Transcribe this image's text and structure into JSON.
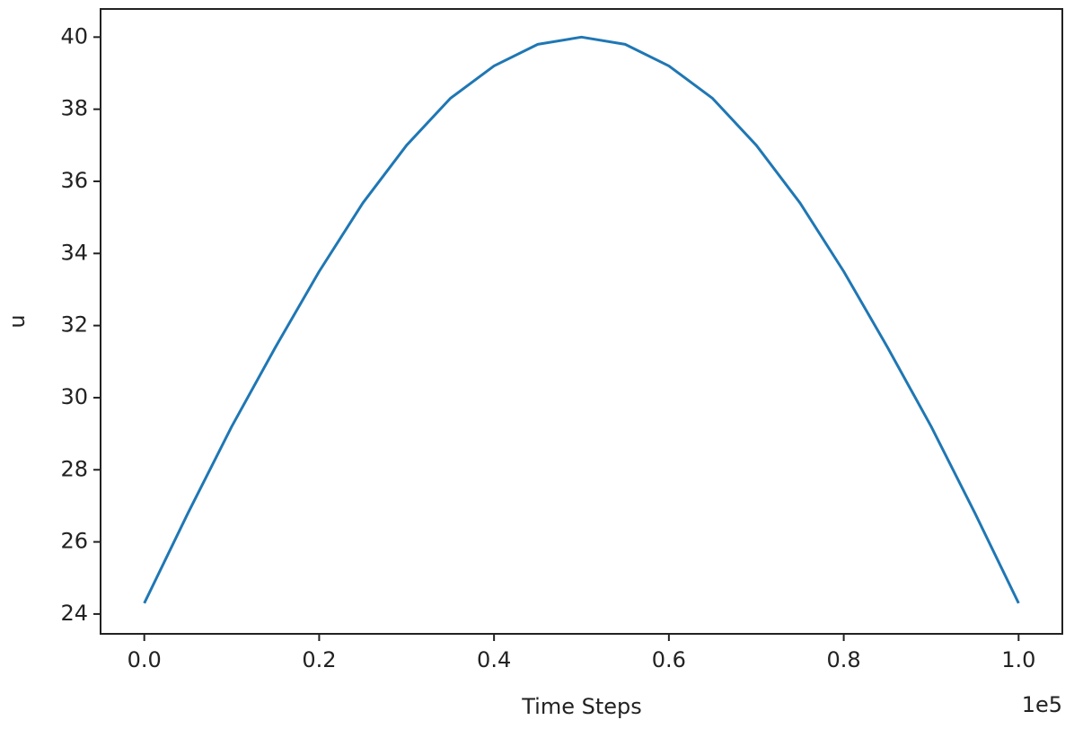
{
  "chart_data": {
    "type": "line",
    "x_label": "Time Steps",
    "y_label": "u",
    "x_offset_label": "1e5",
    "x": [
      0,
      5000,
      10000,
      15000,
      20000,
      25000,
      30000,
      35000,
      40000,
      45000,
      50000,
      55000,
      60000,
      65000,
      70000,
      75000,
      80000,
      85000,
      90000,
      95000,
      100000
    ],
    "series": [
      {
        "color": "#1f77b4",
        "values": [
          24.3,
          26.8,
          29.2,
          31.4,
          33.5,
          35.4,
          37.0,
          38.3,
          39.2,
          39.8,
          40.0,
          39.8,
          39.2,
          38.3,
          37.0,
          35.4,
          33.5,
          31.4,
          29.2,
          26.8,
          24.3
        ]
      }
    ],
    "xlim": [
      -5000,
      105000
    ],
    "xticks": [
      {
        "value": 0,
        "label": "0.0"
      },
      {
        "value": 20000,
        "label": "0.2"
      },
      {
        "value": 40000,
        "label": "0.4"
      },
      {
        "value": 60000,
        "label": "0.6"
      },
      {
        "value": 80000,
        "label": "0.8"
      },
      {
        "value": 100000,
        "label": "1.0"
      }
    ],
    "ylim": [
      23.45,
      40.78
    ],
    "yticks": [
      24,
      26,
      28,
      30,
      32,
      34,
      36,
      38,
      40
    ],
    "grid": false
  }
}
